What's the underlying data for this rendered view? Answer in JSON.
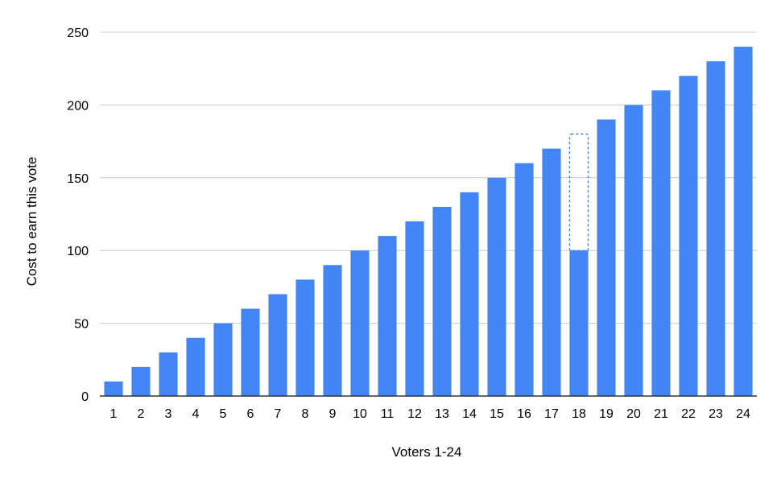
{
  "chart_data": {
    "type": "bar",
    "title": "",
    "xlabel": "Voters 1-24",
    "ylabel": "Cost to earn this vote",
    "categories": [
      "1",
      "2",
      "3",
      "4",
      "5",
      "6",
      "7",
      "8",
      "9",
      "10",
      "11",
      "12",
      "13",
      "14",
      "15",
      "16",
      "17",
      "18",
      "19",
      "20",
      "21",
      "22",
      "23",
      "24"
    ],
    "values": [
      10,
      20,
      30,
      40,
      50,
      60,
      70,
      80,
      90,
      100,
      110,
      120,
      130,
      140,
      150,
      160,
      170,
      100,
      190,
      200,
      210,
      220,
      230,
      240
    ],
    "dashed_outline": {
      "category": "18",
      "from": 100,
      "to": 180
    },
    "ylim": [
      0,
      250
    ],
    "yticks": [
      0,
      50,
      100,
      150,
      200,
      250
    ],
    "grid": true,
    "legend": "none",
    "colors": {
      "bar": "#4285f4",
      "grid": "#cccccc",
      "axis": "#333333",
      "dashed": "#4285f4"
    }
  }
}
